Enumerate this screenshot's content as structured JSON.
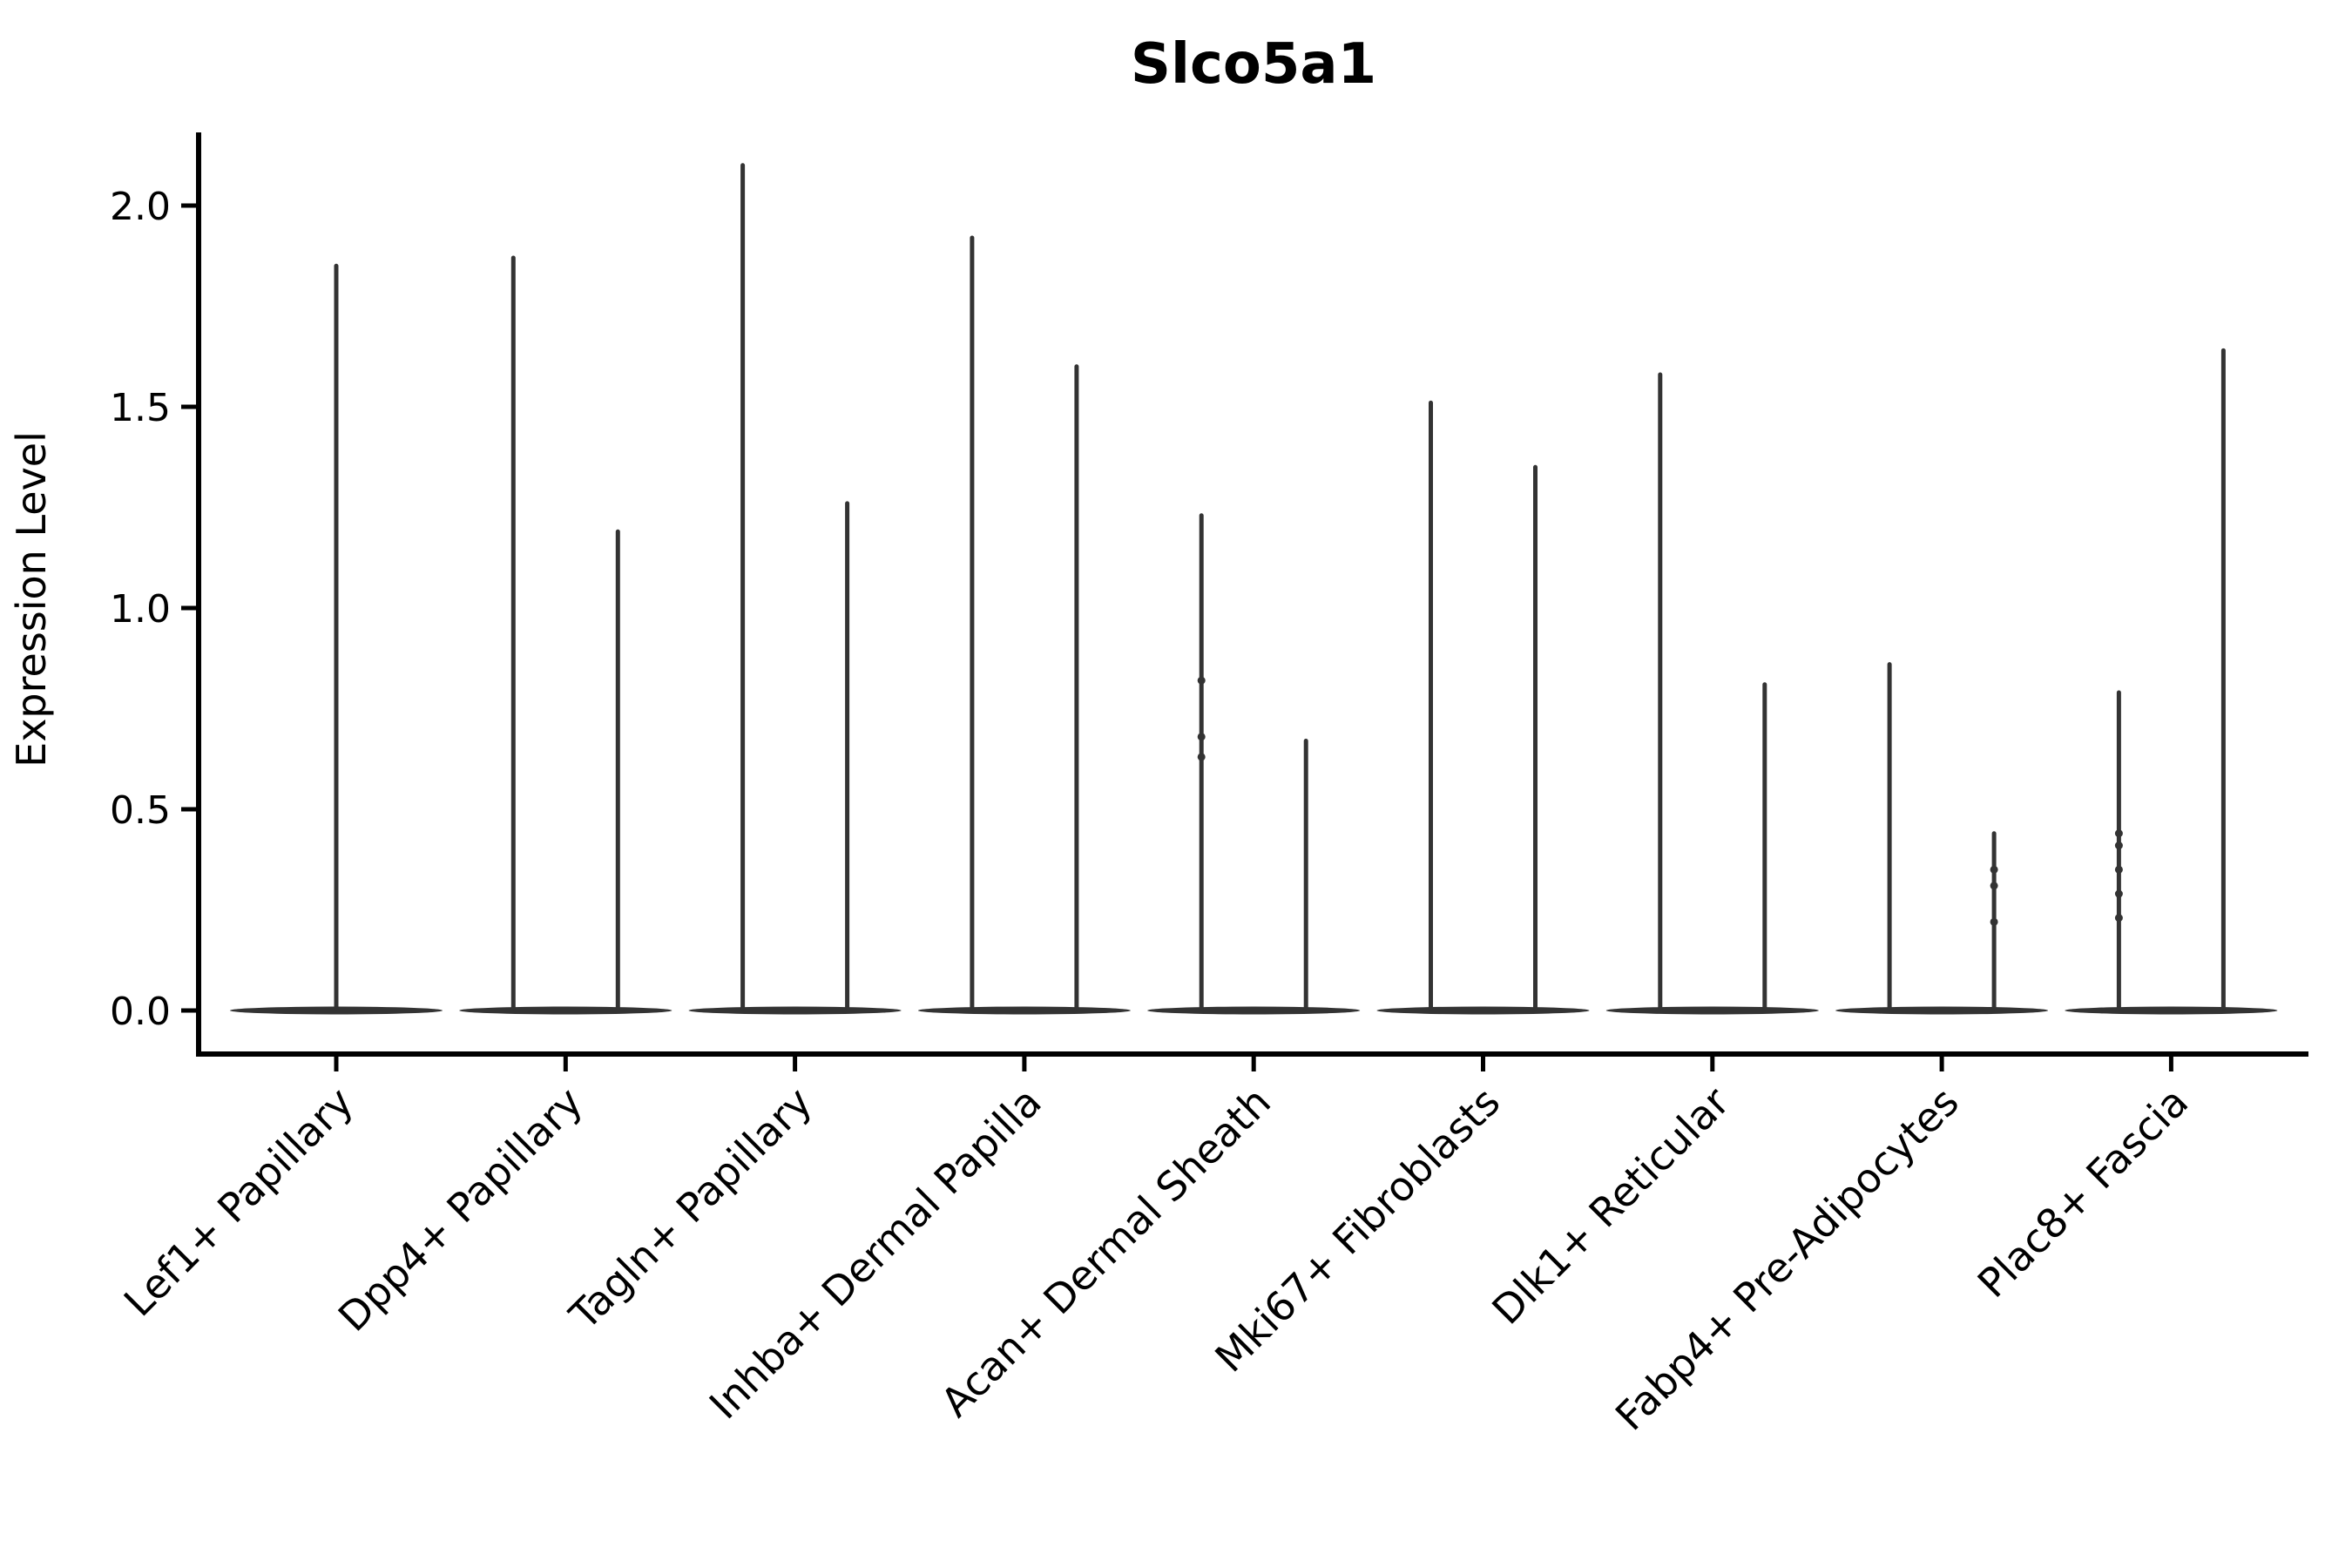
{
  "chart_data": {
    "type": "violin",
    "title": "Slco5a1",
    "ylabel": "Expression Level",
    "xlabel": "",
    "ylim": [
      0,
      2.19
    ],
    "yticks": [
      0.0,
      0.5,
      1.0,
      1.5,
      2.0
    ],
    "ytick_labels": [
      "0.0",
      "0.5",
      "1.0",
      "1.5",
      "2.0"
    ],
    "grid": false,
    "legend": "none",
    "background": "#ffffff",
    "axis_color": "#000000",
    "violin_color": "#333333",
    "baseline_value": 0.0,
    "description": "Sparse single-cell expression violins: each cluster shows a flat dense mass at 0 with thin spikes rising to the max expressing cells. Clusters 2-9 contain two side-by-side violins (split groups); cluster 1 has a single centered violin.",
    "categories": [
      "Lef1+ Papillary",
      "Dpp4+ Papillary",
      "Tagln+ Papillary",
      "Inhba+ Dermal Papilla",
      "Acan+ Dermal Sheath",
      "Mki67+ Fibroblasts",
      "Dlk1+ Reticular",
      "Fabp4+ Pre-Adipocytes",
      "Plac8+ Fascia"
    ],
    "series": [
      {
        "category": "Lef1+ Papillary",
        "violins": [
          {
            "position": "center",
            "max": 1.85,
            "dots": []
          }
        ]
      },
      {
        "category": "Dpp4+ Papillary",
        "violins": [
          {
            "position": "left",
            "max": 1.87,
            "dots": []
          },
          {
            "position": "right",
            "max": 1.19,
            "dots": []
          }
        ]
      },
      {
        "category": "Tagln+ Papillary",
        "violins": [
          {
            "position": "left",
            "max": 2.1,
            "dots": []
          },
          {
            "position": "right",
            "max": 1.26,
            "dots": []
          }
        ]
      },
      {
        "category": "Inhba+ Dermal Papilla",
        "violins": [
          {
            "position": "left",
            "max": 1.92,
            "dots": []
          },
          {
            "position": "right",
            "max": 1.6,
            "dots": []
          }
        ]
      },
      {
        "category": "Acan+ Dermal Sheath",
        "violins": [
          {
            "position": "left",
            "max": 1.23,
            "dots": [
              0.82,
              0.68,
              0.63
            ]
          },
          {
            "position": "right",
            "max": 0.67,
            "dots": []
          }
        ]
      },
      {
        "category": "Mki67+ Fibroblasts",
        "violins": [
          {
            "position": "left",
            "max": 1.51,
            "dots": []
          },
          {
            "position": "right",
            "max": 1.35,
            "dots": []
          }
        ]
      },
      {
        "category": "Dlk1+ Reticular",
        "violins": [
          {
            "position": "left",
            "max": 1.58,
            "dots": []
          },
          {
            "position": "right",
            "max": 0.81,
            "dots": []
          }
        ]
      },
      {
        "category": "Fabp4+ Pre-Adipocytes",
        "violins": [
          {
            "position": "left",
            "max": 0.86,
            "dots": []
          },
          {
            "position": "right",
            "max": 0.44,
            "dots": [
              0.35,
              0.31,
              0.22
            ]
          }
        ]
      },
      {
        "category": "Plac8+ Fascia",
        "violins": [
          {
            "position": "left",
            "max": 0.79,
            "dots": [
              0.44,
              0.41,
              0.35,
              0.29,
              0.23
            ]
          },
          {
            "position": "right",
            "max": 1.64,
            "dots": []
          }
        ]
      }
    ]
  }
}
